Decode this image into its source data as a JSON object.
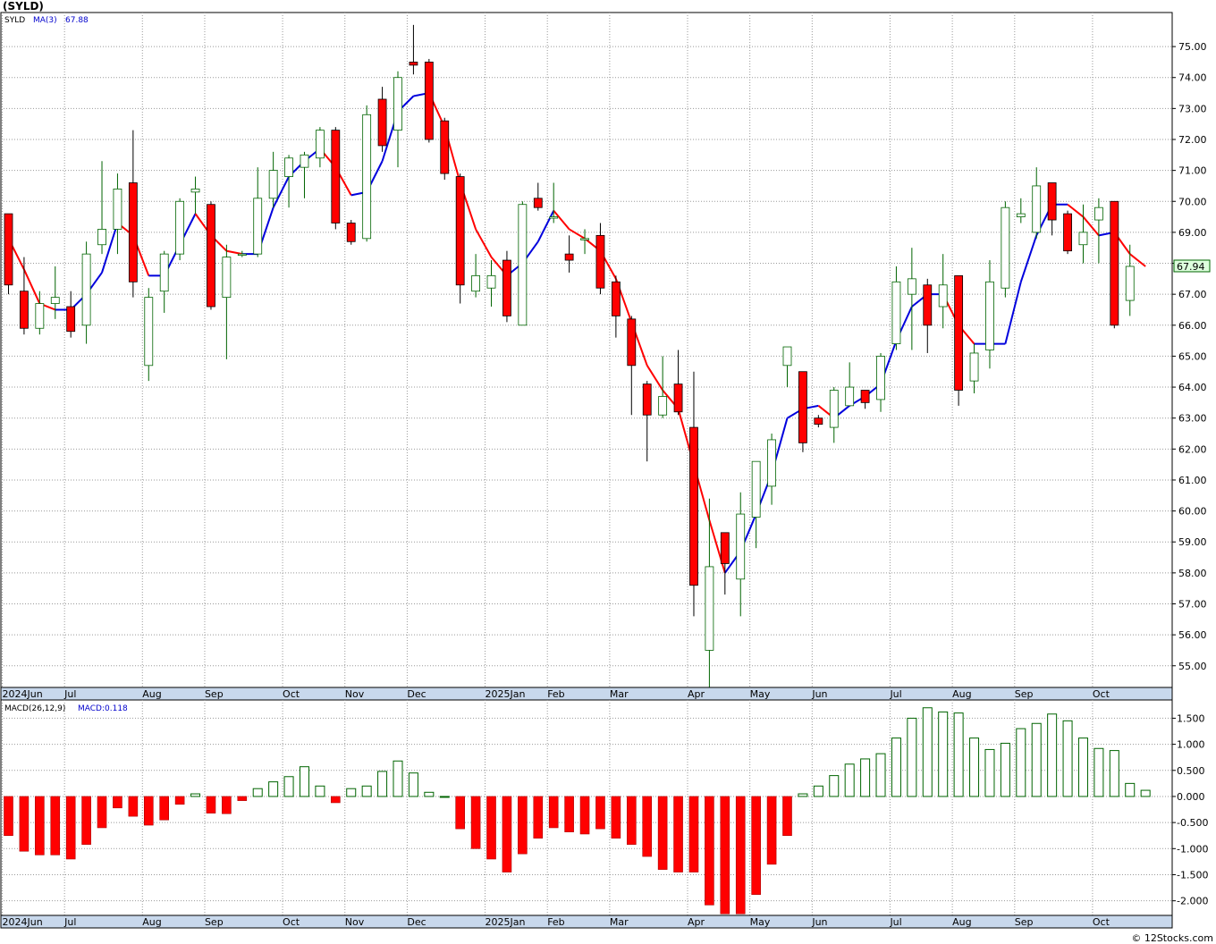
{
  "header": {
    "ticker": "(SYLD)"
  },
  "footer": {
    "credit": "© 12Stocks.com"
  },
  "chart_data": {
    "type": "candlestick",
    "ticker": "SYLD",
    "legend": {
      "symbol": "SYLD",
      "ma_label": "MA(3)",
      "ma_value": "67.88"
    },
    "last_price_label": "67.94",
    "price_axis": {
      "ticks": [
        55,
        56,
        57,
        58,
        59,
        60,
        61,
        62,
        63,
        64,
        65,
        66,
        67,
        68,
        69,
        70,
        71,
        72,
        73,
        74,
        75
      ],
      "range": [
        54.3,
        76.1
      ]
    },
    "month_labels": [
      {
        "label": "2024Jun",
        "week": 0
      },
      {
        "label": "Jul",
        "week": 4
      },
      {
        "label": "Aug",
        "week": 9
      },
      {
        "label": "Sep",
        "week": 13
      },
      {
        "label": "Oct",
        "week": 18
      },
      {
        "label": "Nov",
        "week": 22
      },
      {
        "label": "Dec",
        "week": 26
      },
      {
        "label": "2025Jan",
        "week": 31
      },
      {
        "label": "Feb",
        "week": 35
      },
      {
        "label": "Mar",
        "week": 39
      },
      {
        "label": "Apr",
        "week": 44
      },
      {
        "label": "May",
        "week": 48
      },
      {
        "label": "Jun",
        "week": 52
      },
      {
        "label": "Jul",
        "week": 57
      },
      {
        "label": "Aug",
        "week": 61
      },
      {
        "label": "Sep",
        "week": 65
      },
      {
        "label": "Oct",
        "week": 70
      }
    ],
    "candles": [
      {
        "o": 69.6,
        "h": 69.6,
        "l": 67.0,
        "c": 67.3
      },
      {
        "o": 67.1,
        "h": 68.2,
        "l": 65.7,
        "c": 65.9
      },
      {
        "o": 65.9,
        "h": 67.1,
        "l": 65.7,
        "c": 66.7
      },
      {
        "o": 66.7,
        "h": 67.9,
        "l": 66.2,
        "c": 66.9
      },
      {
        "o": 66.6,
        "h": 67.1,
        "l": 65.6,
        "c": 65.8
      },
      {
        "o": 66.0,
        "h": 68.7,
        "l": 65.4,
        "c": 68.3
      },
      {
        "o": 68.6,
        "h": 71.3,
        "l": 68.3,
        "c": 69.1
      },
      {
        "o": 69.1,
        "h": 70.9,
        "l": 68.3,
        "c": 70.4
      },
      {
        "o": 70.6,
        "h": 72.3,
        "l": 66.9,
        "c": 67.4
      },
      {
        "o": 64.7,
        "h": 67.2,
        "l": 64.2,
        "c": 66.9
      },
      {
        "o": 67.1,
        "h": 68.4,
        "l": 66.4,
        "c": 68.3
      },
      {
        "o": 68.3,
        "h": 70.1,
        "l": 68.1,
        "c": 70.0
      },
      {
        "o": 70.3,
        "h": 70.8,
        "l": 69.6,
        "c": 70.4
      },
      {
        "o": 69.9,
        "h": 70.0,
        "l": 66.5,
        "c": 66.6
      },
      {
        "o": 66.9,
        "h": 68.6,
        "l": 64.9,
        "c": 68.2
      },
      {
        "o": 68.3,
        "h": 68.4,
        "l": 68.2,
        "c": 68.3
      },
      {
        "o": 68.3,
        "h": 71.1,
        "l": 68.2,
        "c": 70.1
      },
      {
        "o": 70.1,
        "h": 71.6,
        "l": 69.8,
        "c": 71.0
      },
      {
        "o": 70.8,
        "h": 71.5,
        "l": 69.8,
        "c": 71.4
      },
      {
        "o": 71.1,
        "h": 71.6,
        "l": 70.1,
        "c": 71.5
      },
      {
        "o": 71.4,
        "h": 72.4,
        "l": 71.1,
        "c": 72.3
      },
      {
        "o": 72.3,
        "h": 72.4,
        "l": 69.1,
        "c": 69.3
      },
      {
        "o": 69.3,
        "h": 69.4,
        "l": 68.6,
        "c": 68.7
      },
      {
        "o": 68.8,
        "h": 73.1,
        "l": 68.7,
        "c": 72.8
      },
      {
        "o": 73.3,
        "h": 73.7,
        "l": 71.6,
        "c": 71.8
      },
      {
        "o": 72.3,
        "h": 74.2,
        "l": 71.1,
        "c": 74.0
      },
      {
        "o": 74.5,
        "h": 75.7,
        "l": 74.1,
        "c": 74.4
      },
      {
        "o": 74.5,
        "h": 74.6,
        "l": 71.9,
        "c": 72.0
      },
      {
        "o": 72.6,
        "h": 72.7,
        "l": 70.7,
        "c": 70.9
      },
      {
        "o": 70.8,
        "h": 70.9,
        "l": 66.7,
        "c": 67.3
      },
      {
        "o": 67.1,
        "h": 68.3,
        "l": 66.9,
        "c": 67.6
      },
      {
        "o": 67.2,
        "h": 68.1,
        "l": 66.6,
        "c": 67.6
      },
      {
        "o": 68.1,
        "h": 68.4,
        "l": 66.1,
        "c": 66.3
      },
      {
        "o": 66.0,
        "h": 70.0,
        "l": 66.0,
        "c": 69.9
      },
      {
        "o": 70.1,
        "h": 70.6,
        "l": 69.7,
        "c": 69.8
      },
      {
        "o": 69.5,
        "h": 70.6,
        "l": 69.3,
        "c": 69.5
      },
      {
        "o": 68.3,
        "h": 68.9,
        "l": 67.7,
        "c": 68.1
      },
      {
        "o": 68.8,
        "h": 69.1,
        "l": 68.3,
        "c": 68.8
      },
      {
        "o": 68.9,
        "h": 69.3,
        "l": 67.0,
        "c": 67.2
      },
      {
        "o": 67.4,
        "h": 67.6,
        "l": 65.6,
        "c": 66.3
      },
      {
        "o": 66.2,
        "h": 66.3,
        "l": 63.1,
        "c": 64.7
      },
      {
        "o": 64.1,
        "h": 64.2,
        "l": 61.6,
        "c": 63.1
      },
      {
        "o": 63.1,
        "h": 65.0,
        "l": 63.0,
        "c": 63.7
      },
      {
        "o": 64.1,
        "h": 65.2,
        "l": 63.1,
        "c": 63.2
      },
      {
        "o": 62.7,
        "h": 64.5,
        "l": 56.6,
        "c": 57.6
      },
      {
        "o": 55.5,
        "h": 60.4,
        "l": 54.2,
        "c": 58.2
      },
      {
        "o": 59.3,
        "h": 59.3,
        "l": 57.3,
        "c": 58.3
      },
      {
        "o": 57.8,
        "h": 60.6,
        "l": 56.6,
        "c": 59.9
      },
      {
        "o": 59.8,
        "h": 61.6,
        "l": 58.8,
        "c": 61.6
      },
      {
        "o": 60.8,
        "h": 62.5,
        "l": 60.2,
        "c": 62.3
      },
      {
        "o": 64.7,
        "h": 65.2,
        "l": 64.0,
        "c": 65.3
      },
      {
        "o": 64.5,
        "h": 64.5,
        "l": 61.9,
        "c": 62.2
      },
      {
        "o": 63.0,
        "h": 63.1,
        "l": 62.7,
        "c": 62.8
      },
      {
        "o": 62.7,
        "h": 64.0,
        "l": 62.2,
        "c": 63.9
      },
      {
        "o": 63.4,
        "h": 64.8,
        "l": 63.5,
        "c": 64.0
      },
      {
        "o": 63.9,
        "h": 63.9,
        "l": 63.3,
        "c": 63.5
      },
      {
        "o": 63.6,
        "h": 65.1,
        "l": 63.2,
        "c": 65.0
      },
      {
        "o": 65.4,
        "h": 67.9,
        "l": 65.2,
        "c": 67.4
      },
      {
        "o": 67.0,
        "h": 68.5,
        "l": 65.2,
        "c": 67.5
      },
      {
        "o": 67.3,
        "h": 67.5,
        "l": 65.1,
        "c": 66.0
      },
      {
        "o": 66.6,
        "h": 68.3,
        "l": 65.9,
        "c": 67.3
      },
      {
        "o": 67.6,
        "h": 67.6,
        "l": 63.4,
        "c": 63.9
      },
      {
        "o": 64.2,
        "h": 65.4,
        "l": 63.8,
        "c": 65.1
      },
      {
        "o": 65.2,
        "h": 68.1,
        "l": 64.6,
        "c": 67.4
      },
      {
        "o": 67.2,
        "h": 70.0,
        "l": 66.9,
        "c": 69.8
      },
      {
        "o": 69.5,
        "h": 70.1,
        "l": 69.3,
        "c": 69.6
      },
      {
        "o": 69.0,
        "h": 71.1,
        "l": 68.8,
        "c": 70.5
      },
      {
        "o": 70.6,
        "h": 70.6,
        "l": 68.9,
        "c": 69.4
      },
      {
        "o": 69.6,
        "h": 69.7,
        "l": 68.3,
        "c": 68.4
      },
      {
        "o": 68.6,
        "h": 69.9,
        "l": 68.0,
        "c": 69.0
      },
      {
        "o": 69.4,
        "h": 70.1,
        "l": 68.0,
        "c": 69.8
      },
      {
        "o": 70.0,
        "h": 70.0,
        "l": 65.9,
        "c": 66.0
      },
      {
        "o": 66.8,
        "h": 68.6,
        "l": 66.3,
        "c": 67.9
      }
    ],
    "ma3": [
      68.8,
      67.8,
      66.7,
      66.5,
      66.5,
      67.0,
      67.7,
      69.3,
      68.9,
      67.6,
      67.6,
      68.6,
      69.6,
      68.9,
      68.4,
      68.3,
      68.3,
      69.8,
      70.8,
      71.3,
      71.7,
      71.1,
      70.2,
      70.3,
      71.3,
      72.9,
      73.4,
      73.5,
      72.4,
      70.6,
      69.1,
      68.2,
      67.6,
      68.0,
      68.7,
      69.7,
      69.1,
      68.8,
      68.4,
      67.5,
      66.1,
      64.7,
      63.9,
      63.3,
      61.5,
      59.7,
      58.0,
      58.7,
      59.9,
      61.2,
      63.0,
      63.3,
      63.4,
      63.0,
      63.4,
      63.7,
      64.1,
      65.5,
      66.6,
      67.0,
      67.0,
      66.0,
      65.4,
      65.4,
      65.4,
      67.4,
      68.9,
      69.9,
      69.9,
      69.5,
      68.9,
      69.0,
      68.3,
      67.9
    ],
    "macd": {
      "label": "MACD(26,12,9)",
      "value_label": "MACD:0.118",
      "ticks": [
        -2.0,
        -1.5,
        -1.0,
        -0.5,
        0.0,
        0.5,
        1.0,
        1.5
      ],
      "tick_labels": [
        "-2.000",
        "-1.500",
        "-1.000",
        "-0.500",
        "0.000",
        "0.500",
        "1.000",
        "1.500"
      ],
      "range": [
        -2.28,
        1.85
      ],
      "values": [
        -0.75,
        -1.05,
        -1.12,
        -1.12,
        -1.2,
        -0.92,
        -0.6,
        -0.22,
        -0.38,
        -0.55,
        -0.45,
        -0.15,
        0.05,
        -0.32,
        -0.33,
        -0.08,
        0.15,
        0.28,
        0.38,
        0.57,
        0.2,
        -0.12,
        0.15,
        0.2,
        0.48,
        0.68,
        0.45,
        0.08,
        0.0,
        -0.62,
        -1.0,
        -1.2,
        -1.45,
        -1.1,
        -0.8,
        -0.6,
        -0.68,
        -0.72,
        -0.62,
        -0.8,
        -0.92,
        -1.15,
        -1.4,
        -1.45,
        -1.45,
        -2.08,
        -2.25,
        -2.25,
        -1.88,
        -1.3,
        -0.75,
        0.05,
        0.2,
        0.4,
        0.62,
        0.72,
        0.82,
        1.12,
        1.5,
        1.7,
        1.62,
        1.6,
        1.12,
        0.9,
        1.02,
        1.3,
        1.4,
        1.58,
        1.45,
        1.12,
        0.92,
        0.88,
        0.25,
        0.118
      ]
    },
    "colors": {
      "up_candle_stroke": "#006400",
      "down_candle_fill": "#ff0000",
      "ma_up": "#0000dd",
      "ma_down": "#ff0000",
      "macd_pos_stroke": "#006400",
      "macd_neg_fill": "#ff0000",
      "grid": "#999999",
      "date_bar": "#c8d8ec"
    },
    "grid": true
  }
}
